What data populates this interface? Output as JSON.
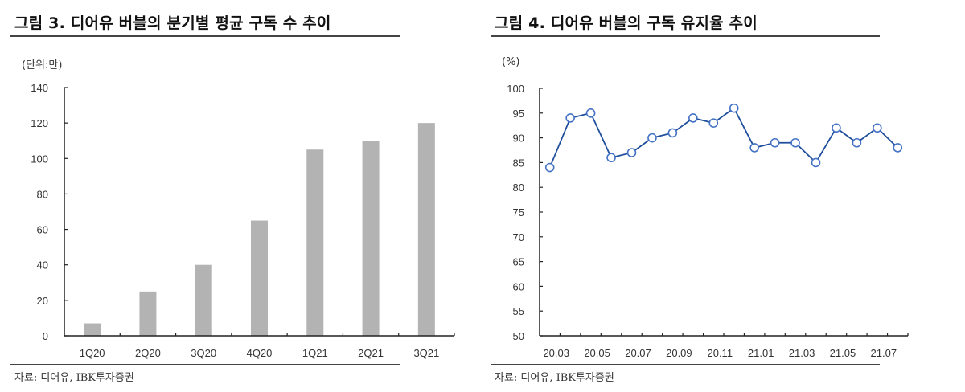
{
  "figures": {
    "left": {
      "title": "그림 3. 디어유 버블의 분기별 평균 구독 수 추이",
      "unit": "(단위:만)",
      "source": "자료: 디어유, IBK투자증권"
    },
    "right": {
      "title": "그림 4. 디어유 버블의 구독 유지율 추이",
      "unit": "(%)",
      "source": "자료: 디어유, IBK투자증권"
    }
  },
  "colors": {
    "bar": "#b3b3b3",
    "line": "#1f4e9c",
    "marker_stroke": "#4472c4",
    "marker_fill": "#ffffff",
    "axis": "#222222"
  },
  "chart_data": [
    {
      "type": "bar",
      "title": "그림 3. 디어유 버블의 분기별 평균 구독 수 추이",
      "xlabel": "",
      "ylabel": "(단위:만)",
      "categories": [
        "1Q20",
        "2Q20",
        "3Q20",
        "4Q20",
        "1Q21",
        "2Q21",
        "3Q21"
      ],
      "values": [
        7,
        25,
        40,
        65,
        105,
        110,
        120
      ],
      "ylim": [
        0,
        140
      ],
      "yticks": [
        0,
        20,
        40,
        60,
        80,
        100,
        120,
        140
      ],
      "grid": false,
      "legend": null
    },
    {
      "type": "line",
      "title": "그림 4. 디어유 버블의 구독 유지율 추이",
      "xlabel": "",
      "ylabel": "(%)",
      "x": [
        "20.03",
        "20.04",
        "20.05",
        "20.06",
        "20.07",
        "20.08",
        "20.09",
        "20.10",
        "20.11",
        "20.12",
        "21.01",
        "21.02",
        "21.03",
        "21.04",
        "21.05",
        "21.06",
        "21.07",
        "21.08"
      ],
      "xtick_labels": [
        "20.03",
        "20.05",
        "20.07",
        "20.09",
        "20.11",
        "21.01",
        "21.03",
        "21.05",
        "21.07"
      ],
      "values": [
        84,
        94,
        95,
        86,
        87,
        90,
        91,
        94,
        93,
        96,
        88,
        89,
        89,
        85,
        92,
        89,
        92,
        88
      ],
      "ylim": [
        50,
        100
      ],
      "yticks": [
        50,
        55,
        60,
        65,
        70,
        75,
        80,
        85,
        90,
        95,
        100
      ],
      "grid": false,
      "markers": "hollow-circle",
      "legend": null
    }
  ]
}
